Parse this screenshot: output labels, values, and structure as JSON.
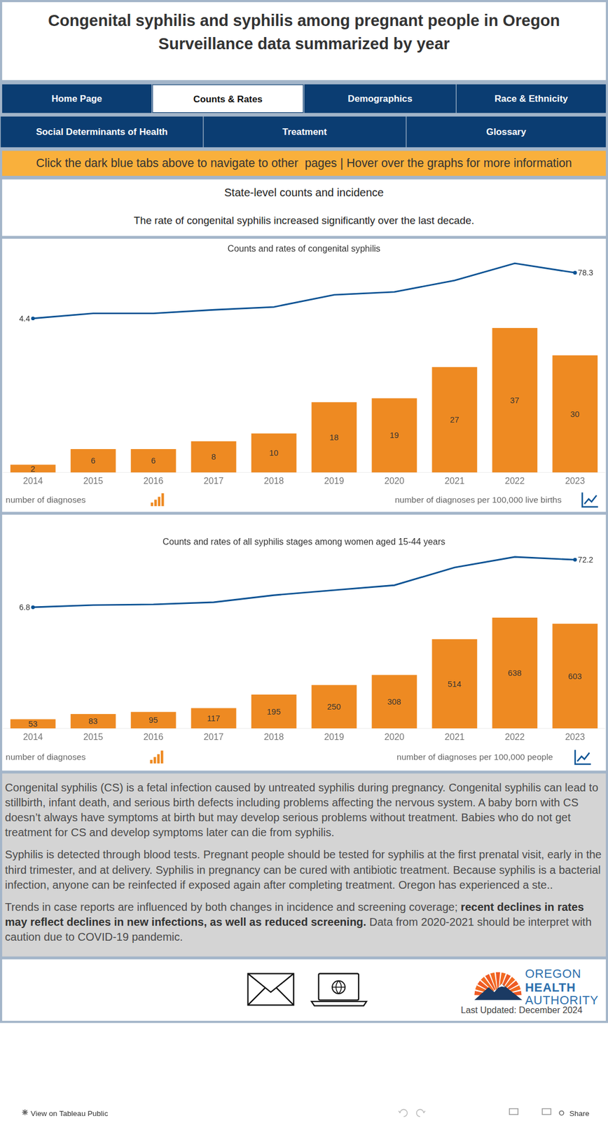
{
  "header": {
    "title": "Congenital syphilis and syphilis among pregnant people in Oregon",
    "subtitle": "Surveillance data summarized by year"
  },
  "tabs": [
    [
      {
        "label": "Home Page",
        "active": false
      },
      {
        "label": "Counts & Rates",
        "active": true
      },
      {
        "label": "Demographics",
        "active": false
      },
      {
        "label": "Race & Ethnicity",
        "active": false
      }
    ],
    [
      {
        "label": "Social Determinants of Health",
        "active": false
      },
      {
        "label": "Treatment",
        "active": false
      },
      {
        "label": "Glossary",
        "active": false
      }
    ]
  ],
  "banner": "Click the dark blue tabs above to navigate to other  pages | Hover over the graphs for more information",
  "section": {
    "title": "State-level counts and incidence",
    "subtitle": "The rate of congenital syphilis increased significantly over the last decade."
  },
  "chart_data": [
    {
      "type": "bar",
      "title": "Counts and rates of congenital syphilis",
      "categories": [
        "2014",
        "2015",
        "2016",
        "2017",
        "2018",
        "2019",
        "2020",
        "2021",
        "2022",
        "2023"
      ],
      "tick_labels": "x",
      "ylim": [
        0,
        56
      ],
      "y2lim": [
        -245,
        109
      ],
      "series": [
        {
          "name": "number of diagnoses",
          "type": "bar",
          "color": "#ee8a22",
          "data_labels": true,
          "values": [
            2,
            6,
            6,
            8,
            10,
            18,
            19,
            27,
            37,
            30
          ]
        },
        {
          "name": "number of diagnoses per 100,000 live births",
          "type": "line",
          "axis": "y2",
          "color": "#0b5394",
          "values": [
            4.4,
            12.5,
            12.5,
            18.3,
            22.9,
            42.5,
            47.2,
            65.8,
            93.5,
            78.3
          ],
          "value_labels": [
            "4.4",
            null,
            null,
            null,
            null,
            null,
            null,
            null,
            null,
            "78.3"
          ]
        }
      ]
    },
    {
      "type": "bar",
      "title": "Counts and rates of all syphilis stages among women aged 15-44 years",
      "categories": [
        "2014",
        "2015",
        "2016",
        "2017",
        "2018",
        "2019",
        "2020",
        "2021",
        "2022",
        "2023"
      ],
      "tick_labels": "x",
      "ylim": [
        0,
        1025
      ],
      "y2lim": [
        -160,
        85
      ],
      "series": [
        {
          "name": "number of diagnoses",
          "type": "bar",
          "color": "#ee8a22",
          "data_labels": true,
          "values": [
            53,
            83,
            95,
            117,
            195,
            250,
            308,
            514,
            638,
            603
          ]
        },
        {
          "name": "number of diagnoses per 100,000 people",
          "type": "line",
          "axis": "y2",
          "color": "#0b5394",
          "values": [
            6.8,
            9.8,
            10.7,
            13.7,
            23.4,
            30.3,
            37.1,
            61.5,
            76.1,
            72.2
          ],
          "value_labels": [
            "6.8",
            null,
            null,
            null,
            null,
            null,
            null,
            null,
            null,
            "72.2"
          ]
        }
      ]
    }
  ],
  "description": [
    [
      {
        "text": "Congenital syphilis (CS) is a fetal infection caused by untreated syphilis during pregnancy. Congenital syphilis can lead to stillbirth, infant death, and serious birth defects including problems affecting the nervous system. A baby born with CS doesn’t always have symptoms at birth but may develop serious problems without treatment. Babies who do not get treatment for CS and develop symptoms later can die from syphilis.",
        "bold": false
      }
    ],
    [
      {
        "text": "Syphilis is detected through blood tests. Pregnant people should be tested for syphilis at the first prenatal visit, early in the third trimester, and at delivery. Syphilis in pregnancy can be cured with antibiotic treatment. Because syphilis is a bacterial infection, anyone can be reinfected if exposed again after completing treatment. Oregon has experienced a ste..",
        "bold": false
      }
    ],
    [
      {
        "text": "Trends in case reports are influenced by both changes in incidence and screening coverage; ",
        "bold": false
      },
      {
        "text": "recent declines in rates may reflect declines in new infections, as well as reduced screening.",
        "bold": true
      },
      {
        "text": " Data from 2020-2021 should be interpret with caution due to COVID-19 pandemic.",
        "bold": false
      }
    ]
  ],
  "footer": {
    "logo": [
      "OREGON",
      "HEALTH",
      "AUTHORITY"
    ],
    "last_updated": "Last Updated: December 2024"
  },
  "toolbar": {
    "link": "View on Tableau Public",
    "share": "Share"
  }
}
